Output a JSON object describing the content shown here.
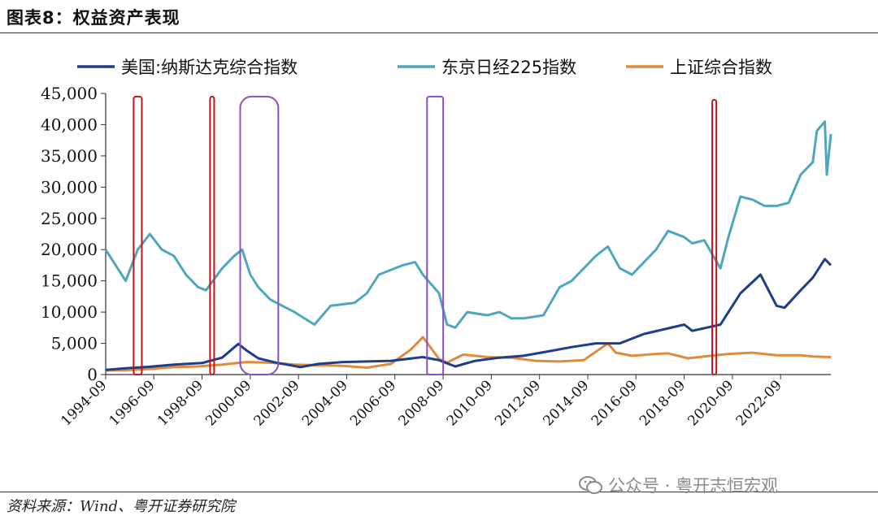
{
  "figure": {
    "title": "图表8：权益资产表现",
    "source": "资料来源：Wind、粤开证券研究院",
    "watermark": "公众号 · 粤开志恒宏观"
  },
  "chart_data": {
    "type": "line",
    "ylim": [
      0,
      45000
    ],
    "yticks": [
      0,
      5000,
      10000,
      15000,
      20000,
      25000,
      30000,
      35000,
      40000,
      45000
    ],
    "ytick_labels": [
      "0",
      "5,000",
      "10,000",
      "15,000",
      "20,000",
      "25,000",
      "30,000",
      "35,000",
      "40,000",
      "45,000"
    ],
    "xlim": [
      1994.67,
      2024.75
    ],
    "xtick_labels": [
      "1994-09",
      "1996-09",
      "1998-09",
      "2000-09",
      "2002-09",
      "2004-09",
      "2006-09",
      "2008-09",
      "2010-09",
      "2012-09",
      "2014-09",
      "2016-09",
      "2018-09",
      "2020-09",
      "2022-09"
    ],
    "legend_position": "top",
    "series": [
      {
        "name": "美国:纳斯达克综合指数",
        "color": "#1f3d8a",
        "x": [
          1994.67,
          1995.5,
          1996.5,
          1997.5,
          1998.67,
          1999.5,
          2000.17,
          2000.5,
          2001.0,
          2001.75,
          2002.75,
          2003.5,
          2004.5,
          2005.5,
          2006.5,
          2007.83,
          2008.5,
          2009.17,
          2010.0,
          2011.0,
          2012.0,
          2013.0,
          2014.0,
          2015.0,
          2016.0,
          2017.0,
          2018.67,
          2019.0,
          2020.17,
          2020.5,
          2021.0,
          2021.83,
          2022.5,
          2022.83,
          2023.5,
          2024.0,
          2024.5,
          2024.75
        ],
        "values": [
          750,
          1000,
          1250,
          1600,
          1850,
          2700,
          4900,
          3900,
          2600,
          1900,
          1200,
          1700,
          2000,
          2100,
          2200,
          2800,
          2300,
          1300,
          2200,
          2700,
          3000,
          3700,
          4400,
          5000,
          5000,
          6500,
          8000,
          7000,
          8000,
          10000,
          13000,
          16000,
          11000,
          10700,
          13500,
          15500,
          18500,
          17500
        ]
      },
      {
        "name": "东京日经225指数",
        "color": "#4fa6bd",
        "x": [
          1994.67,
          1995.0,
          1995.5,
          1996.0,
          1996.5,
          1997.0,
          1997.5,
          1998.0,
          1998.5,
          1998.83,
          1999.5,
          2000.0,
          2000.33,
          2000.67,
          2001.0,
          2001.5,
          2002.0,
          2002.5,
          2003.33,
          2004.0,
          2005.0,
          2005.5,
          2006.0,
          2007.0,
          2007.5,
          2007.83,
          2008.5,
          2008.83,
          2009.17,
          2009.67,
          2010.5,
          2011.0,
          2011.5,
          2012.0,
          2012.83,
          2013.5,
          2014.0,
          2015.0,
          2015.5,
          2016.0,
          2016.5,
          2017.5,
          2018.0,
          2018.67,
          2019.0,
          2019.5,
          2020.17,
          2020.5,
          2021.0,
          2021.5,
          2022.0,
          2022.5,
          2023.0,
          2023.5,
          2024.0,
          2024.17,
          2024.5,
          2024.58,
          2024.75
        ],
        "values": [
          20000,
          18000,
          15000,
          20000,
          22500,
          20000,
          19000,
          16000,
          14000,
          13500,
          17000,
          19000,
          20000,
          16000,
          14000,
          12000,
          11000,
          10000,
          8000,
          11000,
          11500,
          13000,
          16000,
          17500,
          18000,
          16000,
          13000,
          8000,
          7500,
          10000,
          9500,
          10000,
          9000,
          9000,
          9500,
          14000,
          15000,
          19000,
          20500,
          17000,
          16000,
          20000,
          23000,
          22000,
          21000,
          21500,
          17000,
          22000,
          28500,
          28000,
          27000,
          27000,
          27500,
          32000,
          34000,
          39000,
          40500,
          32000,
          38500
        ]
      },
      {
        "name": "上证综合指数",
        "color": "#e08a3c",
        "x": [
          1994.67,
          1995.5,
          1996.5,
          1997.5,
          1998.5,
          1999.5,
          2000.5,
          2001.5,
          2002.5,
          2003.5,
          2004.5,
          2005.5,
          2006.5,
          2007.33,
          2007.83,
          2008.5,
          2008.83,
          2009.5,
          2010.5,
          2011.5,
          2012.5,
          2013.5,
          2014.5,
          2015.5,
          2015.83,
          2016.5,
          2017.5,
          2018.0,
          2018.83,
          2019.5,
          2020.5,
          2021.5,
          2022.5,
          2023.5,
          2024.0,
          2024.75
        ],
        "values": [
          650,
          700,
          900,
          1200,
          1300,
          1600,
          2000,
          1900,
          1600,
          1500,
          1400,
          1100,
          1700,
          4000,
          6000,
          2500,
          1900,
          3200,
          2800,
          2700,
          2200,
          2100,
          2300,
          5000,
          3500,
          3000,
          3300,
          3400,
          2600,
          2900,
          3300,
          3500,
          3100,
          3100,
          2900,
          2800
        ]
      }
    ],
    "highlights": [
      {
        "color": "#c0141c",
        "x_range": [
          1995.83,
          1996.17
        ],
        "y_range": [
          0,
          44500
        ]
      },
      {
        "color": "#c0141c",
        "x_range": [
          1999.0,
          1999.17
        ],
        "y_range": [
          0,
          44500
        ]
      },
      {
        "color": "#8a4fc4",
        "x_range": [
          2000.25,
          2001.83
        ],
        "y_range": [
          0,
          44500
        ]
      },
      {
        "color": "#8a4fc4",
        "x_range": [
          2008.0,
          2008.67
        ],
        "y_range": [
          0,
          44500
        ]
      },
      {
        "color": "#c0141c",
        "x_range": [
          2019.83,
          2020.0
        ],
        "y_range": [
          0,
          44000
        ]
      }
    ]
  }
}
